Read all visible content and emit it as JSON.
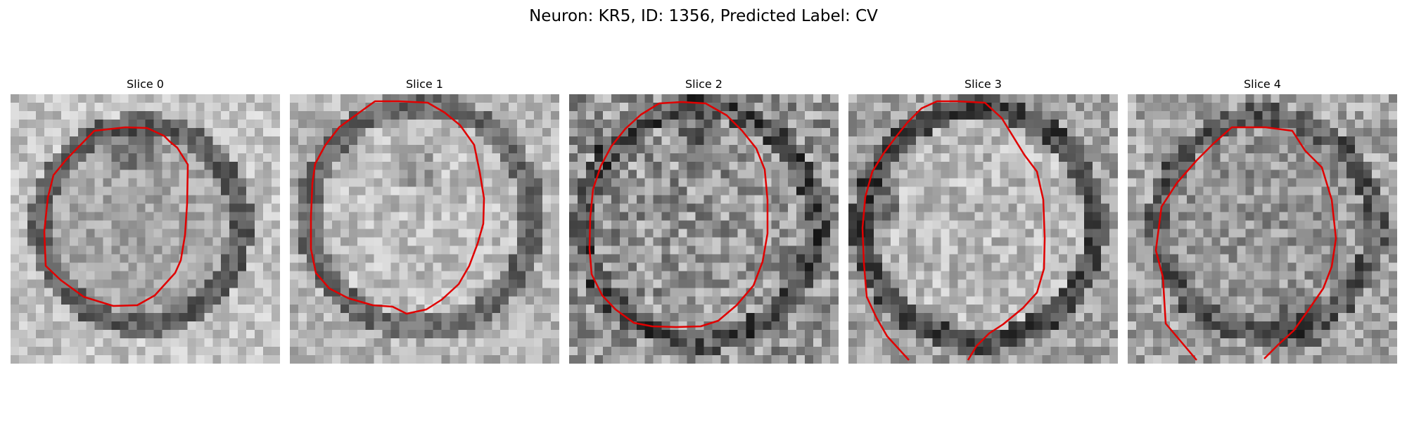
{
  "figure": {
    "title": "Neuron: KR5, ID: 1356, Predicted Label: CV"
  },
  "contour_color": "#e00000",
  "panels": [
    {
      "title": "Slice 0"
    },
    {
      "title": "Slice 1"
    },
    {
      "title": "Slice 2"
    },
    {
      "title": "Slice 3"
    },
    {
      "title": "Slice 4"
    }
  ]
}
